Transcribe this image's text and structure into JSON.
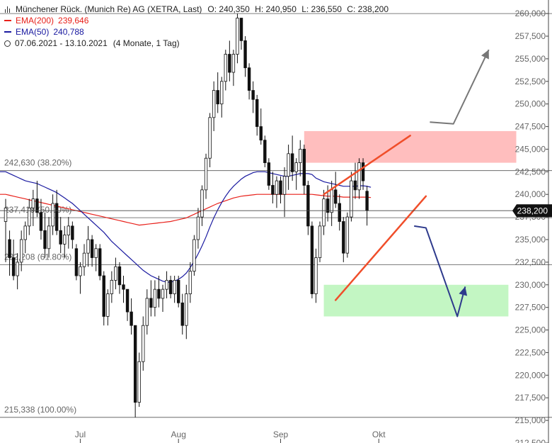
{
  "header": {
    "title": "Münchener Rück. (Munich Re) AG (XETRA, Last)",
    "open": "O: 240,350",
    "high": "H: 240,950",
    "low": "L: 236,550",
    "close": "C: 238,200",
    "ema200_label": "EMA(200)",
    "ema200_value": "239,646",
    "ema50_label": "EMA(50)",
    "ema50_value": "240,788",
    "range": "07.06.2021 - 13.10.2021",
    "interval": "(4 Monate, 1 Tag)",
    "ema200_color": "#e8201a",
    "ema50_color": "#1a1aa0"
  },
  "chart_data": {
    "type": "candlestick",
    "ylim": [
      212500,
      261500
    ],
    "y_ticks": [
      212500,
      215000,
      217500,
      220000,
      222500,
      225000,
      227500,
      230000,
      232500,
      235000,
      237500,
      240000,
      242500,
      245000,
      247500,
      250000,
      252500,
      255000,
      257500,
      260000
    ],
    "y_tick_labels": [
      "212,500",
      "215,000",
      "217,500",
      "220,000",
      "222,500",
      "225,000",
      "227,500",
      "230,000",
      "232,500",
      "235,000",
      "237,500",
      "240,000",
      "242,500",
      "245,000",
      "247,500",
      "250,000",
      "252,500",
      "255,000",
      "257,500",
      "260,000"
    ],
    "x_labels": [
      {
        "label": "Jul",
        "index": 19
      },
      {
        "label": "Aug",
        "index": 44
      },
      {
        "label": "Sep",
        "index": 70
      },
      {
        "label": "Okt",
        "index": 95
      }
    ],
    "last_price": 238200,
    "last_price_label": "238,200",
    "fib_levels": [
      {
        "value": 242630,
        "label": "242,630 (38.20%)"
      },
      {
        "value": 237419,
        "label": "237,419 (50.00%)"
      },
      {
        "value": 232208,
        "label": "232,208 (61.80%)"
      },
      {
        "value": 215338,
        "label": "215,338 (100.00%)"
      },
      {
        "value": 260000,
        "label": ""
      }
    ],
    "zones": [
      {
        "name": "resistance",
        "x_start": 76,
        "x_end": 130,
        "y_low": 243500,
        "y_high": 247000,
        "color": "#ffb3b3"
      },
      {
        "name": "support",
        "x_start": 81,
        "x_end": 128,
        "y_low": 226500,
        "y_high": 230000,
        "color": "#b8f5b8"
      }
    ],
    "candles": [
      {
        "o": 237000,
        "h": 239500,
        "l": 232500,
        "c": 238500
      },
      {
        "o": 235000,
        "h": 236000,
        "l": 231000,
        "c": 233000
      },
      {
        "o": 233000,
        "h": 235000,
        "l": 230500,
        "c": 231000
      },
      {
        "o": 231000,
        "h": 233500,
        "l": 229500,
        "c": 232500
      },
      {
        "o": 232500,
        "h": 236000,
        "l": 231500,
        "c": 235000
      },
      {
        "o": 235000,
        "h": 237000,
        "l": 233500,
        "c": 236500
      },
      {
        "o": 236500,
        "h": 239500,
        "l": 235500,
        "c": 238500
      },
      {
        "o": 238500,
        "h": 240500,
        "l": 236500,
        "c": 239500
      },
      {
        "o": 239500,
        "h": 241500,
        "l": 237500,
        "c": 238000
      },
      {
        "o": 238000,
        "h": 239500,
        "l": 235000,
        "c": 236000
      },
      {
        "o": 236000,
        "h": 238000,
        "l": 233000,
        "c": 234000
      },
      {
        "o": 234000,
        "h": 237500,
        "l": 233000,
        "c": 236500
      },
      {
        "o": 236500,
        "h": 240000,
        "l": 235500,
        "c": 239000
      },
      {
        "o": 239000,
        "h": 240500,
        "l": 235500,
        "c": 236000
      },
      {
        "o": 236000,
        "h": 237500,
        "l": 233500,
        "c": 234500
      },
      {
        "o": 234500,
        "h": 236500,
        "l": 233000,
        "c": 235500
      },
      {
        "o": 235500,
        "h": 237500,
        "l": 234000,
        "c": 236500
      },
      {
        "o": 236500,
        "h": 237000,
        "l": 234000,
        "c": 235000
      },
      {
        "o": 234000,
        "h": 234500,
        "l": 230500,
        "c": 231000
      },
      {
        "o": 231000,
        "h": 232500,
        "l": 229000,
        "c": 232000
      },
      {
        "o": 232000,
        "h": 234500,
        "l": 231000,
        "c": 233500
      },
      {
        "o": 233500,
        "h": 236500,
        "l": 232000,
        "c": 235000
      },
      {
        "o": 235000,
        "h": 235500,
        "l": 232000,
        "c": 233000
      },
      {
        "o": 233000,
        "h": 234500,
        "l": 231500,
        "c": 234000
      },
      {
        "o": 234000,
        "h": 234500,
        "l": 230500,
        "c": 231000
      },
      {
        "o": 231000,
        "h": 231500,
        "l": 225500,
        "c": 226500
      },
      {
        "o": 226500,
        "h": 229500,
        "l": 225500,
        "c": 229000
      },
      {
        "o": 229000,
        "h": 231500,
        "l": 228000,
        "c": 230500
      },
      {
        "o": 230500,
        "h": 233000,
        "l": 229500,
        "c": 232000
      },
      {
        "o": 232000,
        "h": 232500,
        "l": 229000,
        "c": 230000
      },
      {
        "o": 230000,
        "h": 231000,
        "l": 228000,
        "c": 229500
      },
      {
        "o": 229500,
        "h": 229500,
        "l": 226000,
        "c": 227000
      },
      {
        "o": 227000,
        "h": 228500,
        "l": 224500,
        "c": 225500
      },
      {
        "o": 225500,
        "h": 225500,
        "l": 215338,
        "c": 217000
      },
      {
        "o": 217000,
        "h": 222500,
        "l": 216500,
        "c": 221500
      },
      {
        "o": 221500,
        "h": 226500,
        "l": 220500,
        "c": 225500
      },
      {
        "o": 225500,
        "h": 229500,
        "l": 224500,
        "c": 228500
      },
      {
        "o": 228500,
        "h": 230500,
        "l": 226500,
        "c": 227500
      },
      {
        "o": 227500,
        "h": 230500,
        "l": 226500,
        "c": 229500
      },
      {
        "o": 229500,
        "h": 231000,
        "l": 227500,
        "c": 228500
      },
      {
        "o": 228500,
        "h": 230000,
        "l": 227000,
        "c": 229500
      },
      {
        "o": 229500,
        "h": 231500,
        "l": 228500,
        "c": 230500
      },
      {
        "o": 230500,
        "h": 231000,
        "l": 228500,
        "c": 229000
      },
      {
        "o": 229000,
        "h": 231000,
        "l": 228000,
        "c": 230500
      },
      {
        "o": 230500,
        "h": 231000,
        "l": 227500,
        "c": 228000
      },
      {
        "o": 228000,
        "h": 229000,
        "l": 224500,
        "c": 225500
      },
      {
        "o": 225500,
        "h": 230000,
        "l": 224000,
        "c": 229000
      },
      {
        "o": 229000,
        "h": 232500,
        "l": 228000,
        "c": 231500
      },
      {
        "o": 231500,
        "h": 235500,
        "l": 231000,
        "c": 235000
      },
      {
        "o": 235000,
        "h": 238500,
        "l": 234000,
        "c": 237500
      },
      {
        "o": 237500,
        "h": 241000,
        "l": 236500,
        "c": 240500
      },
      {
        "o": 240500,
        "h": 244500,
        "l": 239500,
        "c": 244000
      },
      {
        "o": 244000,
        "h": 249000,
        "l": 243000,
        "c": 248500
      },
      {
        "o": 248500,
        "h": 252500,
        "l": 247000,
        "c": 251500
      },
      {
        "o": 251500,
        "h": 253500,
        "l": 249000,
        "c": 250000
      },
      {
        "o": 250000,
        "h": 253000,
        "l": 248500,
        "c": 252500
      },
      {
        "o": 252500,
        "h": 256000,
        "l": 251500,
        "c": 255500
      },
      {
        "o": 255500,
        "h": 257000,
        "l": 252500,
        "c": 253500
      },
      {
        "o": 253500,
        "h": 256000,
        "l": 252000,
        "c": 255500
      },
      {
        "o": 255500,
        "h": 260000,
        "l": 254500,
        "c": 259500
      },
      {
        "o": 259500,
        "h": 259500,
        "l": 256000,
        "c": 257000
      },
      {
        "o": 257000,
        "h": 257500,
        "l": 253000,
        "c": 254000
      },
      {
        "o": 254000,
        "h": 254500,
        "l": 250500,
        "c": 251500
      },
      {
        "o": 251500,
        "h": 252500,
        "l": 249000,
        "c": 250500
      },
      {
        "o": 250500,
        "h": 251000,
        "l": 246500,
        "c": 247500
      },
      {
        "o": 247500,
        "h": 249500,
        "l": 245500,
        "c": 246000
      },
      {
        "o": 246000,
        "h": 246500,
        "l": 243000,
        "c": 243500
      },
      {
        "o": 243500,
        "h": 244000,
        "l": 240500,
        "c": 241000
      },
      {
        "o": 241000,
        "h": 242500,
        "l": 239000,
        "c": 240000
      },
      {
        "o": 240000,
        "h": 242000,
        "l": 238500,
        "c": 241500
      },
      {
        "o": 241500,
        "h": 242000,
        "l": 239000,
        "c": 240000
      },
      {
        "o": 240000,
        "h": 243000,
        "l": 237500,
        "c": 242000
      },
      {
        "o": 242000,
        "h": 245500,
        "l": 240500,
        "c": 244500
      },
      {
        "o": 244500,
        "h": 246500,
        "l": 241500,
        "c": 242500
      },
      {
        "o": 242500,
        "h": 244000,
        "l": 240500,
        "c": 243500
      },
      {
        "o": 243500,
        "h": 246000,
        "l": 242000,
        "c": 245000
      },
      {
        "o": 245000,
        "h": 245500,
        "l": 240000,
        "c": 241000
      },
      {
        "o": 241000,
        "h": 241500,
        "l": 235500,
        "c": 236500
      },
      {
        "o": 236500,
        "h": 237000,
        "l": 228500,
        "c": 229000
      },
      {
        "o": 229000,
        "h": 234000,
        "l": 228000,
        "c": 233000
      },
      {
        "o": 233000,
        "h": 237000,
        "l": 232500,
        "c": 236500
      },
      {
        "o": 236500,
        "h": 240500,
        "l": 235500,
        "c": 239500
      },
      {
        "o": 239500,
        "h": 241000,
        "l": 237000,
        "c": 238000
      },
      {
        "o": 238000,
        "h": 241500,
        "l": 236500,
        "c": 240500
      },
      {
        "o": 240500,
        "h": 242500,
        "l": 238500,
        "c": 239000
      },
      {
        "o": 239000,
        "h": 240000,
        "l": 236000,
        "c": 237000
      },
      {
        "o": 237000,
        "h": 237500,
        "l": 232500,
        "c": 233500
      },
      {
        "o": 233500,
        "h": 238000,
        "l": 233000,
        "c": 237500
      },
      {
        "o": 237500,
        "h": 242500,
        "l": 237000,
        "c": 241500
      },
      {
        "o": 241500,
        "h": 243500,
        "l": 239500,
        "c": 240500
      },
      {
        "o": 240500,
        "h": 244000,
        "l": 239500,
        "c": 243500
      },
      {
        "o": 243500,
        "h": 244000,
        "l": 240500,
        "c": 241500
      },
      {
        "o": 240350,
        "h": 240950,
        "l": 236550,
        "c": 238200
      }
    ],
    "ema200": [
      240000,
      239900,
      239800,
      239700,
      239600,
      239500,
      239400,
      239300,
      239200,
      239100,
      239000,
      238900,
      238800,
      238700,
      238600,
      238500,
      238400,
      238300,
      238200,
      238100,
      238000,
      237900,
      237800,
      237700,
      237600,
      237500,
      237400,
      237300,
      237200,
      237100,
      237000,
      236900,
      236800,
      236700,
      236600,
      236650,
      236700,
      236750,
      236800,
      236850,
      236900,
      236950,
      237000,
      237100,
      237200,
      237300,
      237400,
      237600,
      237800,
      238000,
      238200,
      238400,
      238600,
      238800,
      239000,
      239150,
      239300,
      239450,
      239600,
      239700,
      239800,
      239850,
      239900,
      239950,
      240000,
      240000,
      240000,
      240000,
      240000,
      240000,
      240000,
      240000,
      240000,
      240000,
      240000,
      240000,
      240000,
      240000,
      240000,
      239950,
      239900,
      239850,
      239800,
      239800,
      239800,
      239750,
      239700,
      239700,
      239700,
      239700,
      239700,
      239700,
      239700,
      239646
    ],
    "ema50": [
      242500,
      242300,
      242100,
      241900,
      241700,
      241500,
      241400,
      241300,
      241200,
      241000,
      240800,
      240600,
      240400,
      240200,
      239900,
      239600,
      239300,
      239000,
      238600,
      238200,
      237800,
      237400,
      237000,
      236600,
      236200,
      235800,
      235300,
      234800,
      234400,
      234000,
      233600,
      233200,
      232800,
      232400,
      232000,
      231600,
      231300,
      231000,
      230800,
      230600,
      230400,
      230300,
      230300,
      230400,
      230600,
      230900,
      231300,
      231900,
      232600,
      233400,
      234300,
      235300,
      236400,
      237400,
      238300,
      239100,
      239800,
      240400,
      240900,
      241300,
      241700,
      242000,
      242200,
      242400,
      242500,
      242500,
      242500,
      242400,
      242300,
      242200,
      242100,
      242000,
      242000,
      242100,
      242200,
      242300,
      242300,
      242300,
      242200,
      241800,
      241600,
      241400,
      241300,
      241200,
      241100,
      241000,
      240900,
      240900,
      240900,
      240900,
      240950,
      240950,
      240900,
      240788
    ],
    "trend_lines": [
      {
        "name": "upper-trend",
        "from": [
          81,
          240000
        ],
        "to": [
          103,
          246500
        ],
        "color": "#f04e2a"
      },
      {
        "name": "lower-trend",
        "from": [
          84,
          228300
        ],
        "to": [
          107,
          239800
        ],
        "color": "#f04e2a"
      }
    ],
    "projections": [
      {
        "name": "bull-projection",
        "points": [
          [
            108,
            248000
          ],
          [
            114,
            247800
          ],
          [
            123,
            256000
          ]
        ],
        "color": "#777777"
      },
      {
        "name": "bear-projection",
        "points": [
          [
            104,
            236500
          ],
          [
            107,
            236300
          ],
          [
            115,
            226500
          ],
          [
            117,
            229800
          ]
        ],
        "color": "#2e3a8c"
      }
    ]
  }
}
